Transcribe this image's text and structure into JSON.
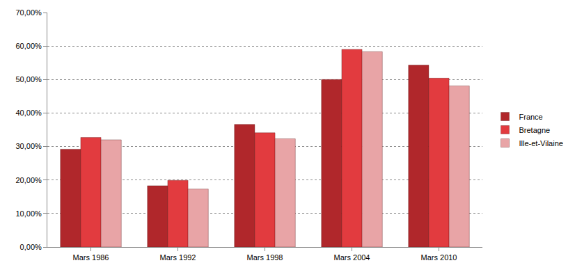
{
  "chart_data": {
    "type": "bar",
    "categories": [
      "Mars 1986",
      "Mars 1992",
      "Mars 1998",
      "Mars 2004",
      "Mars 2010"
    ],
    "series": [
      {
        "name": "France",
        "color": "#b0272b",
        "values": [
          29.2,
          18.3,
          36.6,
          50.0,
          54.3
        ]
      },
      {
        "name": "Bretagne",
        "color": "#e23b3f",
        "values": [
          32.7,
          19.9,
          34.1,
          59.0,
          50.4
        ]
      },
      {
        "name": "Ille-et-Vilaine",
        "color": "#e8a4a6",
        "values": [
          32.0,
          17.3,
          32.3,
          58.3,
          48.1
        ]
      }
    ],
    "ylim": [
      0,
      70
    ],
    "yticks": [
      {
        "value": 0,
        "label": "0,00%"
      },
      {
        "value": 10,
        "label": "10,00%"
      },
      {
        "value": 20,
        "label": "20,00%"
      },
      {
        "value": 30,
        "label": "30,00%"
      },
      {
        "value": 40,
        "label": "40,00%"
      },
      {
        "value": 50,
        "label": "50,00%"
      },
      {
        "value": 60,
        "label": "60,00%"
      },
      {
        "value": 70,
        "label": "70,00%"
      }
    ],
    "grid": true,
    "legend": "right"
  }
}
